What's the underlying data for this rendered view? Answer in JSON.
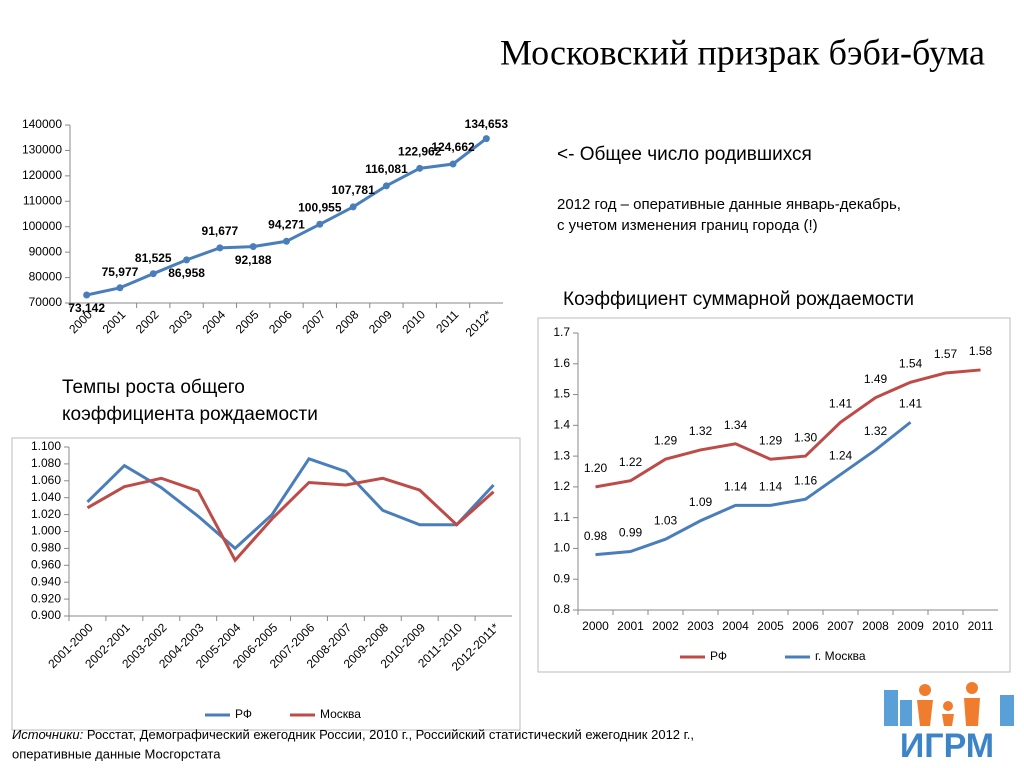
{
  "title": "Московский призрак бэби-бума",
  "note": "<- Общее число родившихся",
  "note2": [
    "2012 год – оперативные данные январь-декабрь,",
    "с учетом изменения границ города (!)"
  ],
  "sources": {
    "label": "Источники:",
    "text": " Росстат, Демографический ежегодник России, 2010 г., Российский статистический ежегодник 2012 г.,",
    "text2": "оперативные данные Мосгорстата"
  },
  "logo": "ИГРМ",
  "chart_data": [
    {
      "type": "line",
      "categories": [
        "2000",
        "2001",
        "2002",
        "2003",
        "2004",
        "2005",
        "2006",
        "2007",
        "2008",
        "2009",
        "2010",
        "2011",
        "2012*"
      ],
      "values": [
        73142,
        75977,
        81525,
        86958,
        91677,
        92188,
        94271,
        100955,
        107781,
        116081,
        122962,
        124662,
        134653
      ],
      "value_labels": [
        "73,142",
        "75,977",
        "81,525",
        "86,958",
        "91,677",
        "92,188",
        "94,271",
        "100,955",
        "107,781",
        "116,081",
        "122,962",
        "124,662",
        "134,653"
      ],
      "color": "#4a7ebb",
      "ylim": [
        70000,
        140000
      ],
      "yticks": [
        70000,
        80000,
        90000,
        100000,
        110000,
        120000,
        130000,
        140000
      ],
      "grid": false
    },
    {
      "type": "line",
      "title": [
        "Темпы роста общего",
        "коэффициента рождаемости"
      ],
      "categories": [
        "2001-2000",
        "2002-2001",
        "2003-2002",
        "2004-2003",
        "2005-2004",
        "2006-2005",
        "2007-2006",
        "2008-2007",
        "2009-2008",
        "2010-2009",
        "2011-2010",
        "2012-2011*"
      ],
      "series": [
        {
          "name": "РФ",
          "color": "#4a7ebb",
          "values": [
            1.035,
            1.078,
            1.052,
            1.018,
            0.98,
            1.02,
            1.086,
            1.071,
            1.025,
            1.008,
            1.008,
            1.055
          ]
        },
        {
          "name": "Москва",
          "color": "#be4b48",
          "values": [
            1.028,
            1.053,
            1.063,
            1.048,
            0.966,
            1.015,
            1.058,
            1.055,
            1.063,
            1.049,
            1.008,
            1.047
          ]
        }
      ],
      "ylim": [
        0.9,
        1.1
      ],
      "yticks": [
        {
          "value": 0.9,
          "label": "0.900"
        },
        {
          "value": 0.92,
          "label": "0.920"
        },
        {
          "value": 0.94,
          "label": "0.940"
        },
        {
          "value": 0.96,
          "label": "0.960"
        },
        {
          "value": 0.98,
          "label": "0.980"
        },
        {
          "value": 1,
          "label": "1.000"
        },
        {
          "value": 1.02,
          "label": "1.020"
        },
        {
          "value": 1.04,
          "label": "1.040"
        },
        {
          "value": 1.06,
          "label": "1.060"
        },
        {
          "value": 1.08,
          "label": "1.080"
        },
        {
          "value": 1.1,
          "label": "1.100"
        }
      ],
      "grid": false
    },
    {
      "type": "line",
      "title": [
        "Коэффициент суммарной рождаемости"
      ],
      "categories": [
        "2000",
        "2001",
        "2002",
        "2003",
        "2004",
        "2005",
        "2006",
        "2007",
        "2008",
        "2009",
        "2010",
        "2011"
      ],
      "series": [
        {
          "name": "РФ",
          "color": "#be4b48",
          "values": [
            1.2,
            1.22,
            1.29,
            1.32,
            1.34,
            1.29,
            1.3,
            1.41,
            1.49,
            1.54,
            1.57,
            1.58
          ],
          "value_labels": [
            "1.20",
            "1.22",
            "1.29",
            "1.32",
            "1.34",
            "1.29",
            "1.30",
            "1.41",
            "1.49",
            "1.54",
            "1.57",
            "1.58"
          ]
        },
        {
          "name": "г. Москва",
          "color": "#4a7ebb",
          "values": [
            0.98,
            0.99,
            1.03,
            1.09,
            1.14,
            1.14,
            1.16,
            1.24,
            1.32,
            1.41,
            null,
            null
          ],
          "value_labels": [
            "0.98",
            "0.99",
            "1.03",
            "1.09",
            "1.14",
            "1.14",
            "1.16",
            "1.24",
            "1.32",
            "1.41",
            null,
            null
          ]
        }
      ],
      "ylim": [
        0.8,
        1.7
      ],
      "yticks": [
        0.8,
        0.9,
        {
          "value": 1,
          "label": "1.0"
        },
        1.1,
        1.2,
        1.3,
        1.4,
        1.5,
        1.6,
        1.7
      ],
      "grid": false
    }
  ]
}
